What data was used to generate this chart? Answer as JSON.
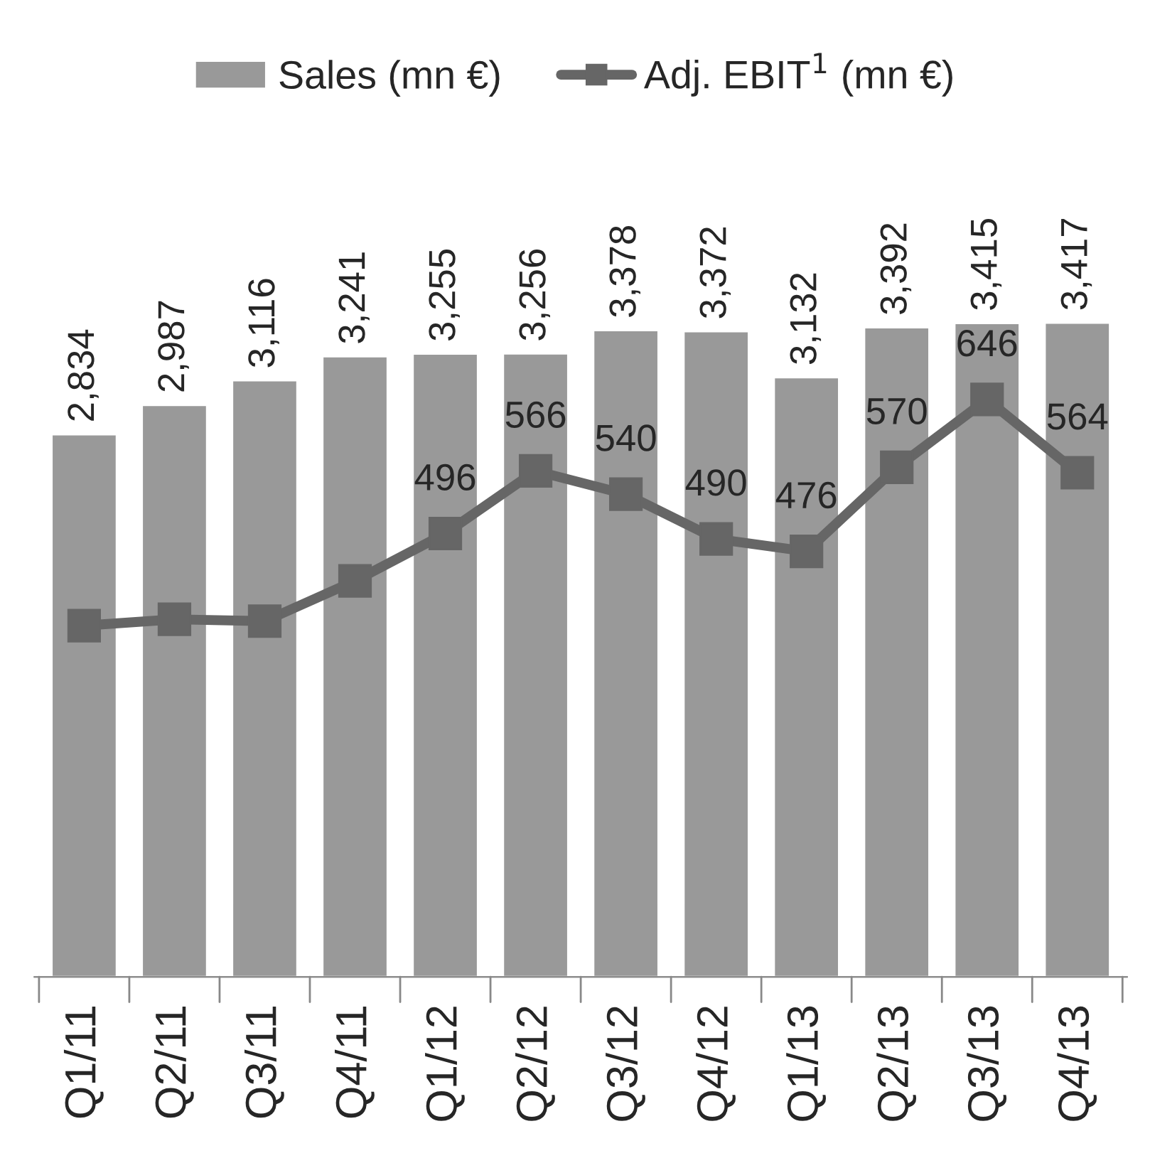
{
  "chart_data": {
    "type": "bar",
    "categories": [
      "Q1/11",
      "Q2/11",
      "Q3/11",
      "Q4/11",
      "Q1/12",
      "Q2/12",
      "Q3/12",
      "Q4/12",
      "Q1/13",
      "Q2/13",
      "Q3/13",
      "Q4/13"
    ],
    "series": [
      {
        "name": "Sales (mn €)",
        "color": "#999999",
        "values": [
          2834,
          2987,
          3116,
          3241,
          3255,
          3256,
          3378,
          3372,
          3132,
          3392,
          3415,
          3417
        ],
        "value_labels": [
          "2,834",
          "2,987",
          "3,116",
          "3,241",
          "3,255",
          "3,256",
          "3,378",
          "3,372",
          "3,132",
          "3,392",
          "3,415",
          "3,417"
        ]
      },
      {
        "name": "Adj. EBIT$^{1}$ (mn €)",
        "type": "line",
        "axis": "y2",
        "color": "#666666",
        "values": [
          393,
          400,
          398,
          443,
          496,
          566,
          540,
          490,
          476,
          570,
          646,
          564
        ],
        "value_labels": [
          null,
          null,
          null,
          null,
          "496",
          "566",
          "540",
          "490",
          "476",
          "570",
          "646",
          "564"
        ]
      }
    ],
    "legend": "top",
    "marker": "square",
    "tick_labels": "x"
  }
}
